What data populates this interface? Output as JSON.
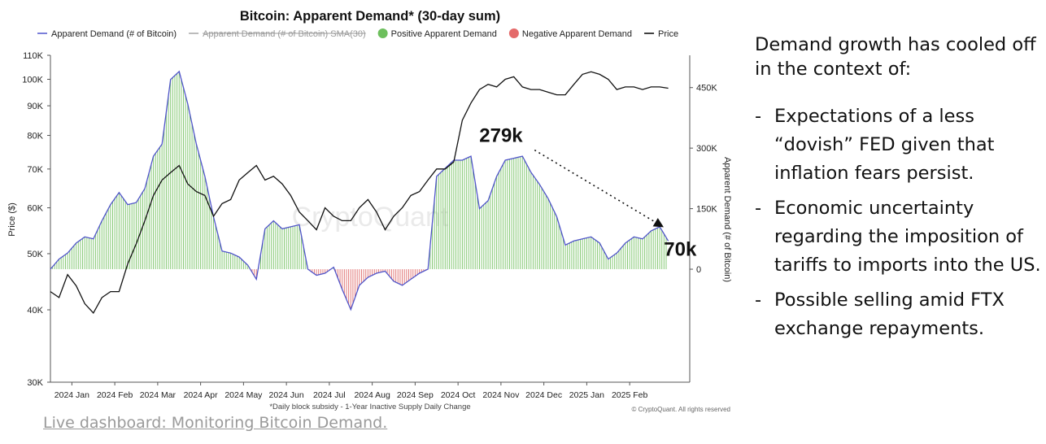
{
  "chart_data": {
    "type": "bar+line",
    "title": "Bitcoin: Apparent Demand* (30-day sum)",
    "legend": [
      {
        "label": "Apparent Demand (# of Bitcoin)",
        "style": "line",
        "color": "#5a5fd0"
      },
      {
        "label": "Apparent Demand (# of Bitcoin)  SMA(30)",
        "style": "line-strike",
        "color": "#aaaaaa"
      },
      {
        "label": "Positive Apparent Demand",
        "style": "dot",
        "color": "#6dbf5d"
      },
      {
        "label": "Negative Apparent Demand",
        "style": "dot",
        "color": "#e46a6a"
      },
      {
        "label": "Price",
        "style": "line",
        "color": "#111111"
      }
    ],
    "ylabel_left": "Price ($)",
    "ylabel_right": "Apparent Demand (# of Bitcoin)",
    "y_left_scale": "log",
    "y_left_range": [
      30000,
      110000
    ],
    "y_left_ticks": [
      {
        "label": "110K",
        "value": 110000
      },
      {
        "label": "100K",
        "value": 100000
      },
      {
        "label": "90K",
        "value": 90000
      },
      {
        "label": "80K",
        "value": 80000
      },
      {
        "label": "70K",
        "value": 70000
      },
      {
        "label": "60K",
        "value": 60000
      },
      {
        "label": "50K",
        "value": 50000
      },
      {
        "label": "40K",
        "value": 40000
      },
      {
        "label": "30K",
        "value": 30000
      }
    ],
    "y_right_range": [
      -280000,
      530000
    ],
    "y_right_ticks": [
      {
        "label": "450K",
        "value": 450000
      },
      {
        "label": "300K",
        "value": 300000
      },
      {
        "label": "150K",
        "value": 150000
      },
      {
        "label": "0",
        "value": 0
      }
    ],
    "x_ticks": [
      "2024 Jan",
      "2024 Feb",
      "2024 Mar",
      "2024 Apr",
      "2024 May",
      "2024 Jun",
      "2024 Jul",
      "2024 Aug",
      "2024 Sep",
      "2024 Oct",
      "2024 Nov",
      "2024 Dec",
      "2025 Jan",
      "2025 Feb"
    ],
    "x_range": [
      0,
      14.9
    ],
    "demand": {
      "x": [
        0,
        0.2,
        0.4,
        0.6,
        0.8,
        1.0,
        1.2,
        1.4,
        1.6,
        1.8,
        2.0,
        2.2,
        2.4,
        2.6,
        2.8,
        3.0,
        3.2,
        3.4,
        3.6,
        3.8,
        4.0,
        4.2,
        4.4,
        4.6,
        4.8,
        5.0,
        5.2,
        5.4,
        5.6,
        5.8,
        6.0,
        6.2,
        6.4,
        6.6,
        6.8,
        7.0,
        7.2,
        7.4,
        7.6,
        7.8,
        8.0,
        8.2,
        8.4,
        8.6,
        8.8,
        9.0,
        9.2,
        9.4,
        9.6,
        9.8,
        10.0,
        10.2,
        10.4,
        10.6,
        10.8,
        11.0,
        11.2,
        11.4,
        11.6,
        11.8,
        12.0,
        12.2,
        12.4,
        12.6,
        12.8,
        13.0,
        13.2,
        13.4,
        13.6,
        13.8,
        14.0,
        14.2,
        14.4
      ],
      "values": [
        0,
        25000,
        40000,
        65000,
        80000,
        75000,
        120000,
        160000,
        190000,
        160000,
        165000,
        200000,
        280000,
        310000,
        470000,
        490000,
        410000,
        310000,
        230000,
        130000,
        45000,
        40000,
        30000,
        10000,
        -25000,
        100000,
        120000,
        100000,
        105000,
        110000,
        0,
        -15000,
        -10000,
        5000,
        -50000,
        -100000,
        -40000,
        -20000,
        -10000,
        -5000,
        -30000,
        -40000,
        -25000,
        -10000,
        0,
        230000,
        250000,
        270000,
        270000,
        280000,
        150000,
        170000,
        230000,
        270000,
        275000,
        280000,
        240000,
        210000,
        175000,
        130000,
        60000,
        70000,
        75000,
        80000,
        65000,
        25000,
        40000,
        65000,
        80000,
        75000,
        95000,
        105000,
        70000
      ]
    },
    "price": {
      "x": [
        0,
        0.2,
        0.4,
        0.6,
        0.8,
        1.0,
        1.2,
        1.4,
        1.6,
        1.8,
        2.0,
        2.2,
        2.4,
        2.6,
        2.8,
        3.0,
        3.2,
        3.4,
        3.6,
        3.8,
        4.0,
        4.2,
        4.4,
        4.6,
        4.8,
        5.0,
        5.2,
        5.4,
        5.6,
        5.8,
        6.0,
        6.2,
        6.4,
        6.6,
        6.8,
        7.0,
        7.2,
        7.4,
        7.6,
        7.8,
        8.0,
        8.2,
        8.4,
        8.6,
        8.8,
        9.0,
        9.2,
        9.4,
        9.6,
        9.8,
        10.0,
        10.2,
        10.4,
        10.6,
        10.8,
        11.0,
        11.2,
        11.4,
        11.6,
        11.8,
        12.0,
        12.2,
        12.4,
        12.6,
        12.8,
        13.0,
        13.2,
        13.4,
        13.6,
        13.8,
        14.0,
        14.2,
        14.4
      ],
      "values": [
        43000,
        42000,
        46000,
        44000,
        41000,
        39500,
        42000,
        43000,
        43000,
        48000,
        52000,
        57000,
        63000,
        67000,
        69000,
        71000,
        66000,
        64000,
        63000,
        58000,
        61000,
        62000,
        67000,
        69000,
        71000,
        67000,
        68000,
        66000,
        63000,
        59000,
        57000,
        55000,
        60000,
        58000,
        57000,
        57000,
        60000,
        62000,
        59000,
        55000,
        58000,
        60000,
        63000,
        64000,
        67000,
        70000,
        70000,
        72000,
        85000,
        91000,
        96000,
        98000,
        97000,
        100000,
        101000,
        97000,
        96000,
        96000,
        95000,
        94000,
        94000,
        98000,
        102000,
        103000,
        102000,
        100000,
        96000,
        97000,
        97000,
        96000,
        97000,
        97000,
        96500
      ]
    },
    "annotations": [
      {
        "text": "279k",
        "at_x": 11.0,
        "at_y": 279000
      },
      {
        "text": "70k",
        "at_x": 14.45,
        "at_y": 70000
      }
    ],
    "watermark": "CryptoQuant",
    "footnote": "*Daily block subsidy - 1-Year Inactive Supply Daily Change",
    "credit": "© CryptoQuant. All rights reserved"
  },
  "commentary": {
    "intro": "Demand growth has cooled off in the context of:",
    "bullets": [
      "Expectations of a less “dovish” FED given that inflation fears persist.",
      "Economic uncertainty regarding the imposition of tariffs to imports into the US.",
      "Possible selling amid FTX exchange repayments."
    ],
    "bullet_marker": "-"
  },
  "link": {
    "text": "Live dashboard: Monitoring Bitcoin Demand."
  }
}
